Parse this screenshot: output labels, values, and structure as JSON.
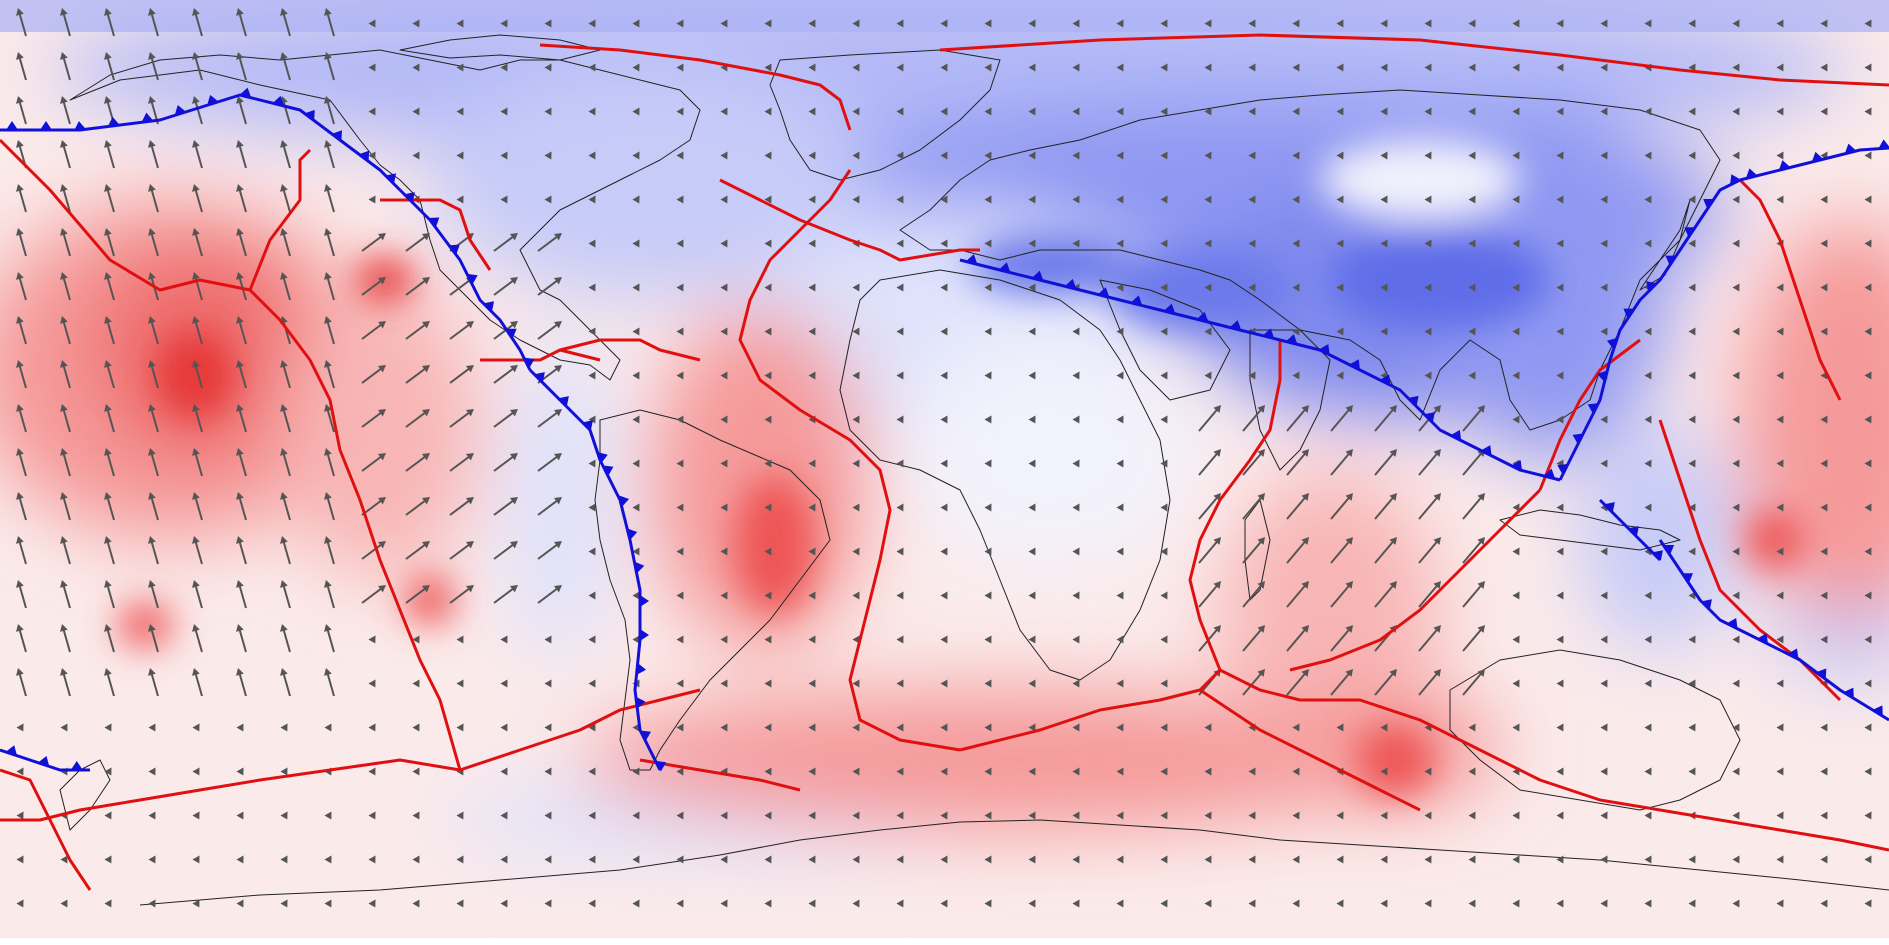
{
  "map": {
    "projection": "equirectangular",
    "colors": {
      "compression": "#4a5ce8",
      "extension": "#ef2a2a",
      "neutral": "#ffffff",
      "divergent_boundary": "#e01010",
      "convergent_boundary": "#1010d8",
      "coastline": "#222222",
      "velocity_arrow": "#555555"
    },
    "layers": [
      "dynamic-topography-field",
      "plate-velocity-arrows",
      "plate-boundaries",
      "coastlines"
    ],
    "legend": null
  }
}
